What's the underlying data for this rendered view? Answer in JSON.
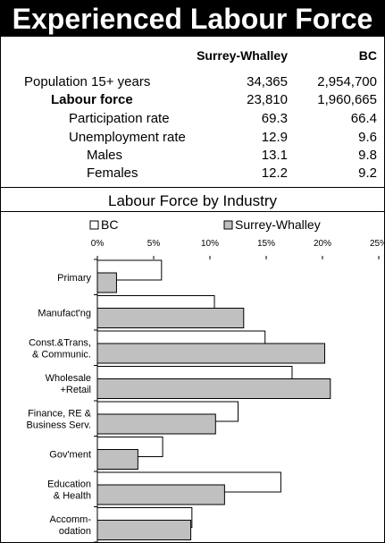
{
  "title": "Experienced Labour Force",
  "stats": {
    "col_headers": [
      "Surrey-Whalley",
      "BC"
    ],
    "rows": [
      {
        "label": "Population 15+ years",
        "v1": "34,365",
        "v2": "2,954,700",
        "bold": false
      },
      {
        "label": "Labour force",
        "v1": "23,810",
        "v2": "1,960,665",
        "bold": true
      },
      {
        "label": "Participation rate",
        "v1": "69.3",
        "v2": "66.4",
        "bold": false
      },
      {
        "label": "Unemployment rate",
        "v1": "12.9",
        "v2": "9.6",
        "bold": false
      },
      {
        "label": "Males",
        "v1": "13.1",
        "v2": "9.8",
        "bold": false
      },
      {
        "label": "Females",
        "v1": "12.2",
        "v2": "9.2",
        "bold": false
      }
    ]
  },
  "chart_data": {
    "type": "bar",
    "orientation": "horizontal",
    "title": "Labour Force by Industry",
    "categories": [
      [
        "Primary"
      ],
      [
        "Manufact'ng"
      ],
      [
        "Const.&Trans,",
        "& Communic."
      ],
      [
        "Wholesale",
        "+Retail"
      ],
      [
        "Finance, RE &",
        "Business Serv."
      ],
      [
        "Gov'ment"
      ],
      [
        "Education",
        "& Health"
      ],
      [
        "Accomm-",
        "odation"
      ]
    ],
    "series": [
      {
        "name": "BC",
        "color": "#ffffff",
        "values": [
          5.7,
          10.4,
          14.9,
          17.3,
          12.5,
          5.8,
          16.3,
          8.4
        ]
      },
      {
        "name": "Surrey-Whalley",
        "color": "#c0c0c0",
        "values": [
          1.7,
          13.0,
          20.2,
          20.7,
          10.5,
          3.6,
          11.3,
          8.3
        ]
      }
    ],
    "xlim": [
      0,
      25
    ],
    "xticks": [
      "0%",
      "5%",
      "10%",
      "15%",
      "20%",
      "25%"
    ],
    "legend_position": "top",
    "grid": false
  }
}
